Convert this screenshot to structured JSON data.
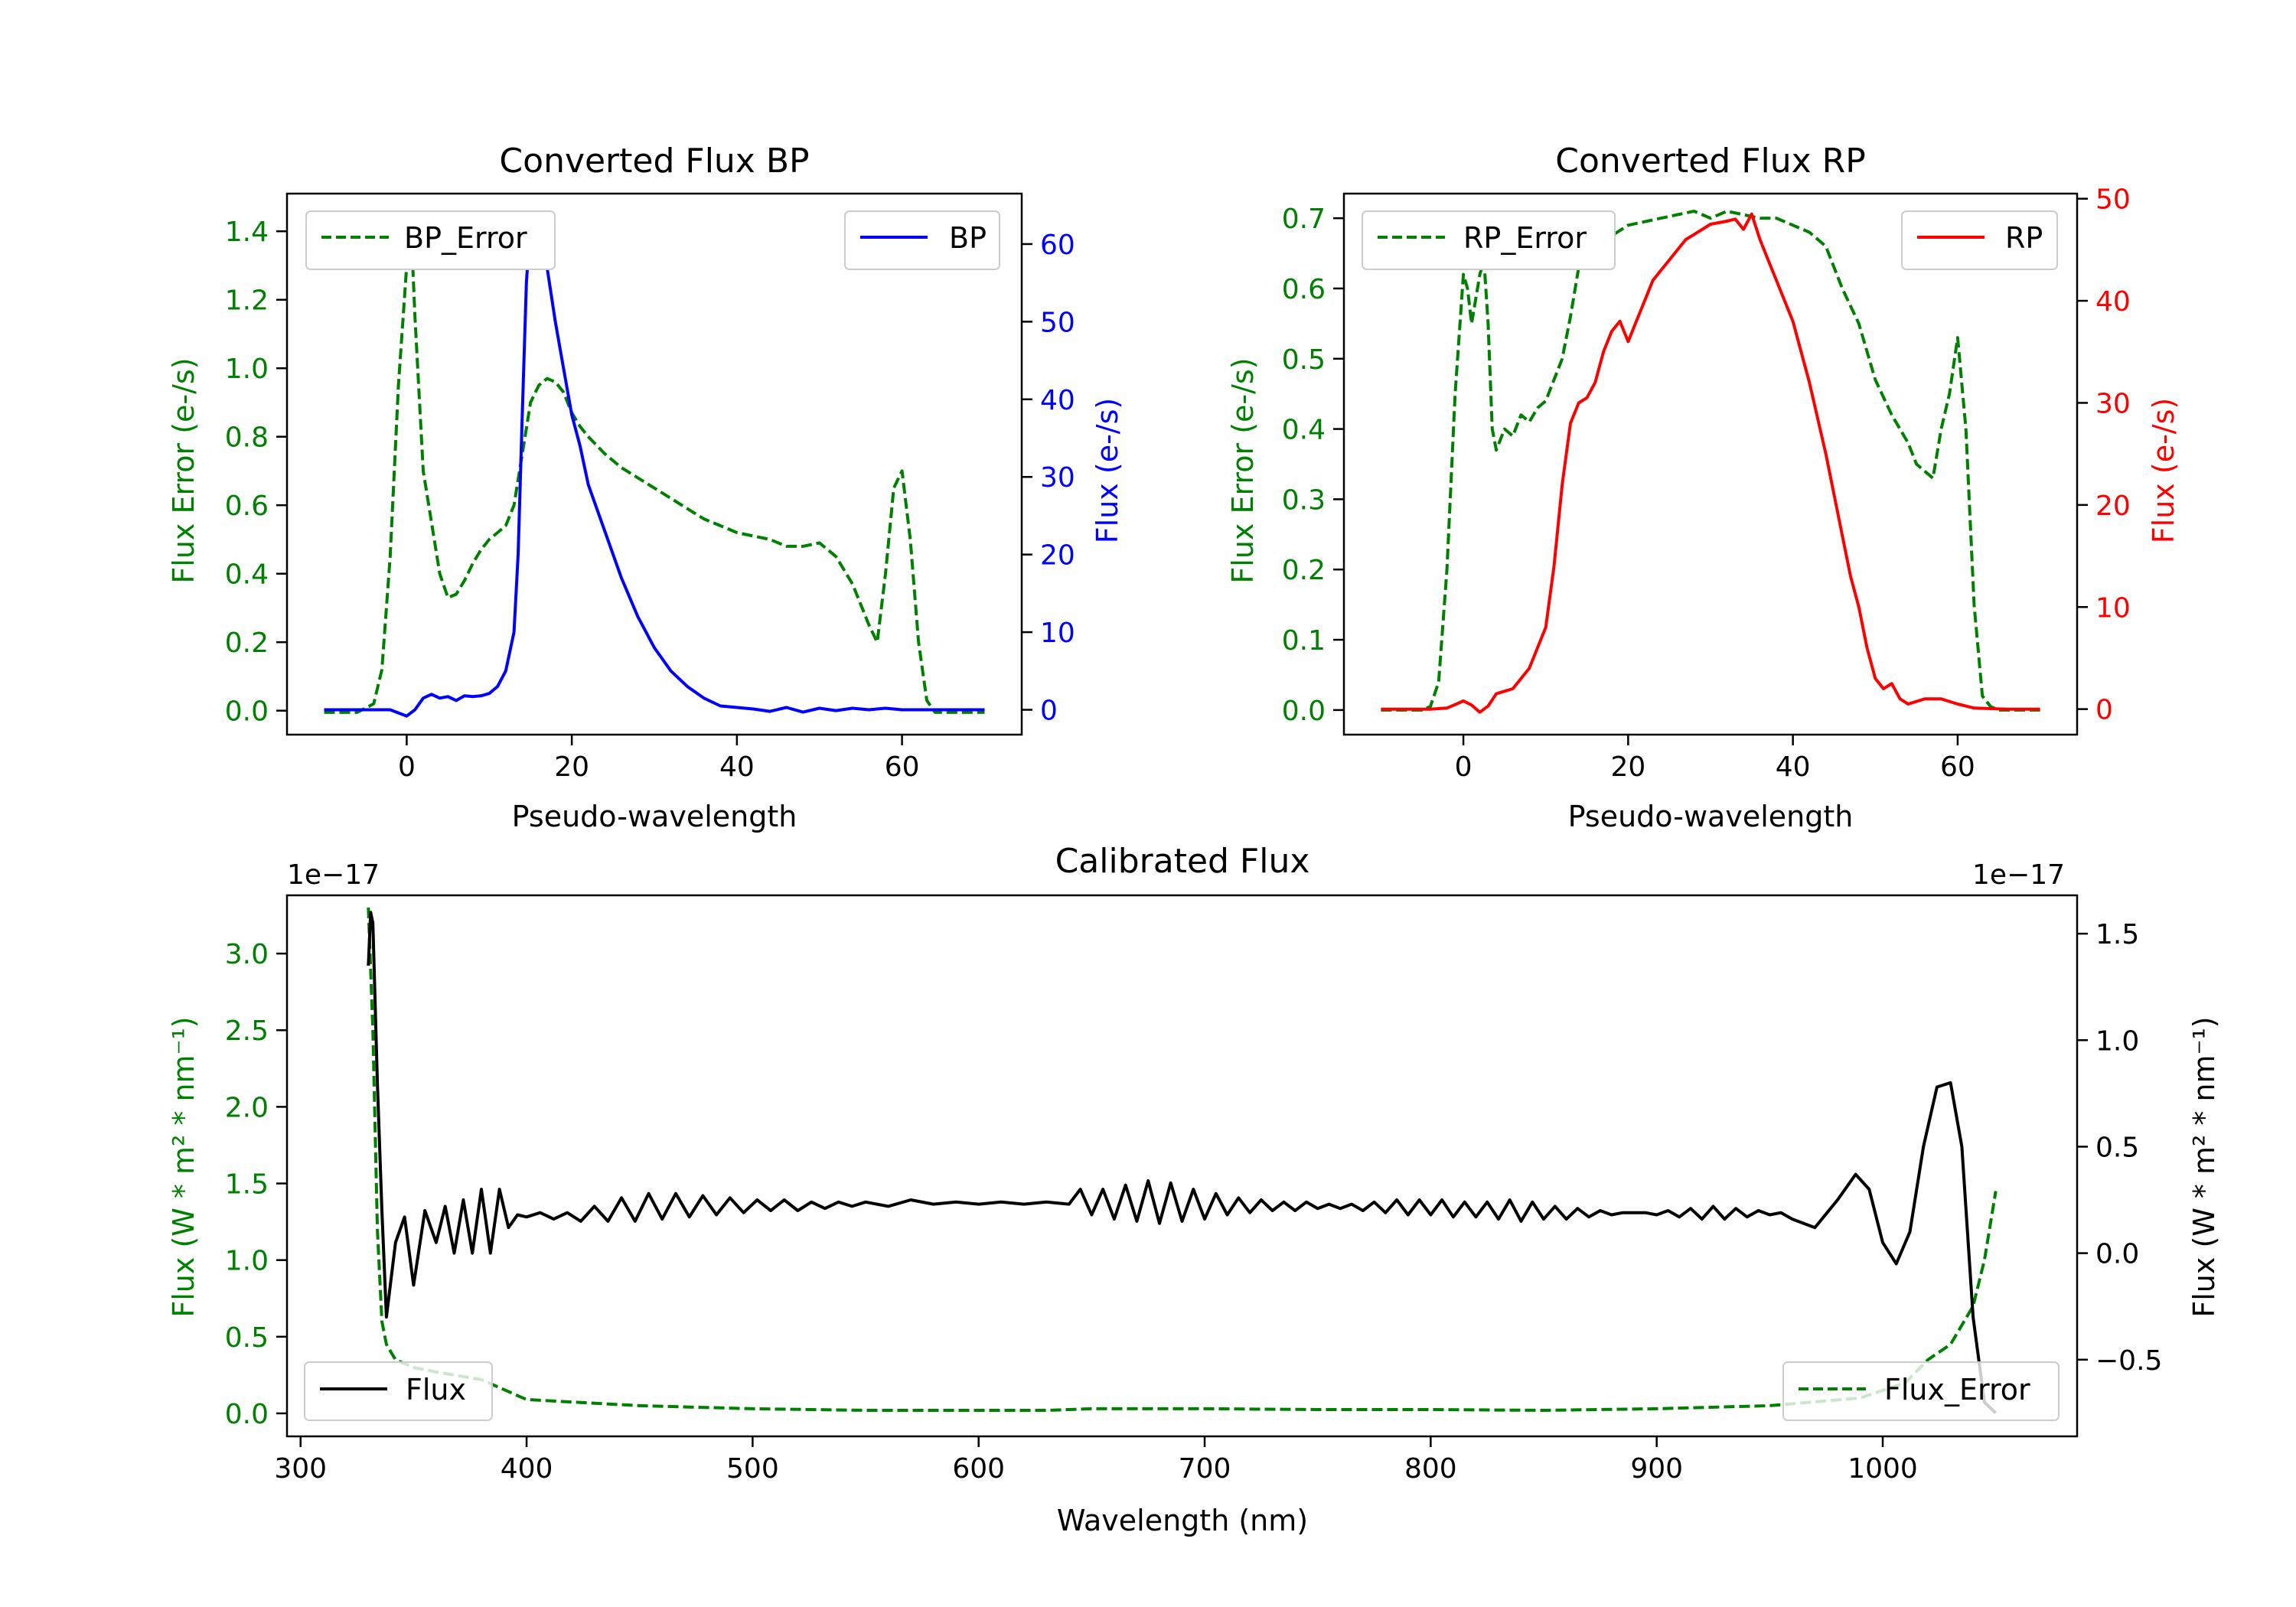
{
  "figure": {
    "background": "#ffffff"
  },
  "chart_data": [
    {
      "id": "bp",
      "type": "line",
      "title": "Converted Flux BP",
      "xlabel": "Pseudo-wavelength",
      "ylabel_left": "Flux Error (e-/s)",
      "ylabel_right": "Flux (e-/s)",
      "left_color": "#008000",
      "right_color": "#0000ff",
      "xlim": [
        -14.5,
        74.5
      ],
      "ylim_left": [
        -0.07,
        1.51
      ],
      "ylim_right": [
        -3.2,
        66.5
      ],
      "xticks": [
        0,
        20,
        40,
        60
      ],
      "xtick_labels": [
        "0",
        "20",
        "40",
        "60"
      ],
      "yticks_left": [
        0.0,
        0.2,
        0.4,
        0.6,
        0.8,
        1.0,
        1.2,
        1.4
      ],
      "ytick_labels_left": [
        "0.0",
        "0.2",
        "0.4",
        "0.6",
        "0.8",
        "1.0",
        "1.2",
        "1.4"
      ],
      "yticks_right": [
        0,
        10,
        20,
        30,
        40,
        50,
        60
      ],
      "ytick_labels_right": [
        "0",
        "10",
        "20",
        "30",
        "40",
        "50",
        "60"
      ],
      "legend_left": {
        "label": "BP_Error",
        "position": "upper-left"
      },
      "legend_right": {
        "label": "BP",
        "position": "upper-right"
      },
      "series": [
        {
          "name": "BP_Error",
          "axis": "left",
          "color": "#008000",
          "style": "dashed",
          "x": [
            -10,
            -6,
            -4,
            -3,
            -2,
            -1,
            0,
            0.5,
            1,
            2,
            3,
            4,
            5,
            6,
            7,
            8,
            9,
            10,
            11,
            12,
            13,
            14,
            15,
            16,
            17,
            18,
            19,
            20,
            21,
            22,
            24,
            26,
            28,
            30,
            32,
            34,
            36,
            38,
            40,
            42,
            44,
            46,
            48,
            50,
            52,
            54,
            55,
            56,
            57,
            58,
            59,
            60,
            61,
            62,
            63,
            64,
            65,
            66,
            70
          ],
          "y": [
            -0.005,
            -0.005,
            0.02,
            0.12,
            0.45,
            0.95,
            1.3,
            1.43,
            1.15,
            0.7,
            0.55,
            0.4,
            0.33,
            0.34,
            0.38,
            0.43,
            0.47,
            0.5,
            0.52,
            0.54,
            0.6,
            0.75,
            0.9,
            0.95,
            0.97,
            0.96,
            0.93,
            0.87,
            0.83,
            0.8,
            0.75,
            0.71,
            0.68,
            0.65,
            0.62,
            0.59,
            0.56,
            0.54,
            0.52,
            0.51,
            0.5,
            0.48,
            0.48,
            0.49,
            0.45,
            0.37,
            0.31,
            0.25,
            0.2,
            0.4,
            0.65,
            0.7,
            0.5,
            0.2,
            0.03,
            -0.005,
            -0.005,
            -0.005,
            -0.005
          ]
        },
        {
          "name": "BP",
          "axis": "right",
          "color": "#0000ff",
          "style": "solid",
          "x": [
            -10,
            -4,
            -2,
            0,
            1,
            2,
            3,
            4,
            5,
            6,
            7,
            8,
            9,
            10,
            11,
            12,
            13,
            13.5,
            14,
            14.5,
            15,
            15.5,
            16,
            17,
            18,
            19,
            20,
            21,
            22,
            23,
            24,
            26,
            28,
            30,
            32,
            34,
            36,
            38,
            40,
            42,
            44,
            46,
            48,
            50,
            52,
            54,
            56,
            58,
            60,
            62,
            64,
            66,
            70
          ],
          "y": [
            0,
            0,
            0,
            -0.8,
            0,
            1.5,
            2,
            1.5,
            1.7,
            1.2,
            1.8,
            1.7,
            1.8,
            2.1,
            3.0,
            5.0,
            10,
            20,
            38,
            55,
            63,
            63.5,
            61,
            57,
            50,
            44,
            38,
            34,
            29,
            26,
            23,
            17,
            12,
            8,
            5,
            3,
            1.5,
            0.5,
            0.3,
            0.1,
            -0.2,
            0.3,
            -0.3,
            0.2,
            -0.1,
            0.2,
            0,
            0.2,
            0,
            0,
            0,
            0,
            0
          ]
        }
      ]
    },
    {
      "id": "rp",
      "type": "line",
      "title": "Converted Flux RP",
      "xlabel": "Pseudo-wavelength",
      "ylabel_left": "Flux Error (e-/s)",
      "ylabel_right": "Flux (e-/s)",
      "left_color": "#008000",
      "right_color": "#ff0000",
      "xlim": [
        -14.5,
        74.5
      ],
      "ylim_left": [
        -0.035,
        0.735
      ],
      "ylim_right": [
        -2.5,
        50.5
      ],
      "xticks": [
        0,
        20,
        40,
        60
      ],
      "xtick_labels": [
        "0",
        "20",
        "40",
        "60"
      ],
      "yticks_left": [
        0.0,
        0.1,
        0.2,
        0.3,
        0.4,
        0.5,
        0.6,
        0.7
      ],
      "ytick_labels_left": [
        "0.0",
        "0.1",
        "0.2",
        "0.3",
        "0.4",
        "0.5",
        "0.6",
        "0.7"
      ],
      "yticks_right": [
        0,
        10,
        20,
        30,
        40,
        50
      ],
      "ytick_labels_right": [
        "0",
        "10",
        "20",
        "30",
        "40",
        "50"
      ],
      "legend_left": {
        "label": "RP_Error",
        "position": "upper-left"
      },
      "legend_right": {
        "label": "RP",
        "position": "upper-right"
      },
      "series": [
        {
          "name": "RP_Error",
          "axis": "left",
          "color": "#008000",
          "style": "dashed",
          "x": [
            -10,
            -5,
            -4,
            -3,
            -2,
            -1,
            0,
            0.5,
            1,
            2,
            2.5,
            3,
            3.5,
            4,
            5,
            6,
            7,
            8,
            9,
            10,
            11,
            12,
            13,
            14,
            15,
            16,
            18,
            20,
            22,
            24,
            26,
            28,
            30,
            32,
            34,
            36,
            38,
            40,
            42,
            44,
            46,
            48,
            50,
            52,
            54,
            55,
            56,
            57,
            58,
            59,
            60,
            61,
            62,
            63,
            64,
            65,
            66,
            70
          ],
          "y": [
            0,
            0,
            0.005,
            0.04,
            0.2,
            0.45,
            0.62,
            0.6,
            0.55,
            0.62,
            0.64,
            0.55,
            0.4,
            0.37,
            0.4,
            0.39,
            0.42,
            0.41,
            0.43,
            0.44,
            0.47,
            0.5,
            0.56,
            0.63,
            0.64,
            0.66,
            0.675,
            0.69,
            0.695,
            0.7,
            0.705,
            0.71,
            0.7,
            0.71,
            0.705,
            0.7,
            0.7,
            0.69,
            0.68,
            0.66,
            0.6,
            0.55,
            0.47,
            0.42,
            0.38,
            0.35,
            0.34,
            0.33,
            0.4,
            0.45,
            0.53,
            0.4,
            0.15,
            0.02,
            0.005,
            0,
            0,
            0
          ]
        },
        {
          "name": "RP",
          "axis": "right",
          "color": "#ff0000",
          "style": "solid",
          "x": [
            -10,
            -4,
            -2,
            0,
            1,
            2,
            3,
            4,
            6,
            8,
            10,
            11,
            12,
            13,
            14,
            15,
            16,
            17,
            18,
            19,
            20,
            21,
            22,
            23,
            24,
            25,
            26,
            27,
            28,
            30,
            32,
            33,
            34,
            35,
            36,
            37,
            38,
            40,
            42,
            44,
            46,
            47,
            48,
            49,
            50,
            51,
            52,
            53,
            54,
            56,
            58,
            60,
            62,
            66,
            70
          ],
          "y": [
            0,
            0,
            0.1,
            0.8,
            0.4,
            -0.3,
            0.3,
            1.5,
            2.0,
            4.0,
            8.0,
            14,
            22,
            28,
            30,
            30.5,
            32,
            35,
            37,
            38,
            36,
            38,
            40,
            42,
            43,
            44,
            45,
            46,
            46.5,
            47.5,
            47.8,
            48,
            47,
            48.5,
            46,
            44,
            42,
            38,
            32,
            25,
            17,
            13,
            10,
            6,
            3,
            2,
            2.5,
            1.0,
            0.5,
            1.0,
            1.0,
            0.5,
            0.1,
            0,
            0
          ]
        }
      ]
    },
    {
      "id": "cal",
      "type": "line",
      "title": "Calibrated Flux",
      "xlabel": "Wavelength (nm)",
      "ylabel_left": "Flux (W * m² * nm⁻¹)",
      "ylabel_right": "Flux (W * m² * nm⁻¹)",
      "left_color": "#008000",
      "right_color": "#000000",
      "left_offset": "1e−17",
      "right_offset": "1e−17",
      "xlim": [
        294,
        1086
      ],
      "ylim_left": [
        -0.15,
        3.38
      ],
      "ylim_right": [
        -0.86,
        1.68
      ],
      "xticks": [
        300,
        400,
        500,
        600,
        700,
        800,
        900,
        1000
      ],
      "xtick_labels": [
        "300",
        "400",
        "500",
        "600",
        "700",
        "800",
        "900",
        "1000"
      ],
      "yticks_left": [
        0.0,
        0.5,
        1.0,
        1.5,
        2.0,
        2.5,
        3.0
      ],
      "ytick_labels_left": [
        "0.0",
        "0.5",
        "1.0",
        "1.5",
        "2.0",
        "2.5",
        "3.0"
      ],
      "yticks_right": [
        -0.5,
        0.0,
        0.5,
        1.0,
        1.5
      ],
      "ytick_labels_right": [
        "−0.5",
        "0.0",
        "0.5",
        "1.0",
        "1.5"
      ],
      "legend_left": {
        "label": "Flux",
        "position": "lower-left"
      },
      "legend_right": {
        "label": "Flux_Error",
        "position": "lower-right"
      },
      "series": [
        {
          "name": "Flux_Error",
          "axis": "left",
          "color": "#008000",
          "style": "dashed",
          "x": [
            330,
            332,
            334,
            336,
            338,
            342,
            350,
            360,
            380,
            400,
            450,
            500,
            550,
            600,
            630,
            650,
            700,
            750,
            800,
            850,
            900,
            950,
            990,
            1010,
            1020,
            1030,
            1040,
            1045,
            1050
          ],
          "y": [
            3.3,
            2.5,
            1.2,
            0.6,
            0.45,
            0.35,
            0.3,
            0.27,
            0.22,
            0.09,
            0.05,
            0.03,
            0.02,
            0.02,
            0.02,
            0.03,
            0.03,
            0.025,
            0.025,
            0.02,
            0.03,
            0.05,
            0.1,
            0.2,
            0.35,
            0.45,
            0.7,
            1.0,
            1.45
          ]
        },
        {
          "name": "Flux",
          "axis": "right",
          "color": "#000000",
          "style": "solid",
          "x": [
            330,
            331,
            332,
            334,
            336,
            338,
            342,
            346,
            350,
            355,
            360,
            364,
            368,
            372,
            376,
            380,
            384,
            388,
            392,
            396,
            400,
            406,
            412,
            418,
            424,
            430,
            436,
            442,
            448,
            454,
            460,
            466,
            472,
            478,
            484,
            490,
            496,
            502,
            508,
            514,
            520,
            526,
            532,
            538,
            544,
            550,
            560,
            570,
            580,
            590,
            600,
            610,
            620,
            630,
            640,
            645,
            650,
            655,
            660,
            665,
            670,
            675,
            680,
            685,
            690,
            695,
            700,
            705,
            710,
            715,
            720,
            725,
            730,
            735,
            740,
            745,
            750,
            755,
            760,
            765,
            770,
            775,
            780,
            785,
            790,
            795,
            800,
            805,
            810,
            815,
            820,
            825,
            830,
            835,
            840,
            845,
            850,
            855,
            860,
            865,
            870,
            875,
            880,
            885,
            890,
            895,
            900,
            905,
            910,
            915,
            920,
            925,
            930,
            935,
            940,
            945,
            950,
            955,
            960,
            970,
            980,
            988,
            994,
            1000,
            1006,
            1012,
            1018,
            1024,
            1030,
            1035,
            1040,
            1045,
            1050
          ],
          "y": [
            1.35,
            1.6,
            1.55,
            0.8,
            0.2,
            -0.3,
            0.05,
            0.17,
            -0.15,
            0.2,
            0.05,
            0.22,
            0.0,
            0.25,
            0.0,
            0.3,
            0.0,
            0.3,
            0.12,
            0.18,
            0.17,
            0.19,
            0.16,
            0.19,
            0.15,
            0.22,
            0.15,
            0.26,
            0.15,
            0.28,
            0.16,
            0.28,
            0.17,
            0.27,
            0.18,
            0.26,
            0.19,
            0.25,
            0.2,
            0.25,
            0.2,
            0.24,
            0.21,
            0.24,
            0.22,
            0.24,
            0.22,
            0.25,
            0.23,
            0.24,
            0.23,
            0.24,
            0.23,
            0.24,
            0.23,
            0.3,
            0.18,
            0.3,
            0.16,
            0.32,
            0.15,
            0.34,
            0.14,
            0.33,
            0.15,
            0.3,
            0.16,
            0.28,
            0.18,
            0.26,
            0.19,
            0.25,
            0.2,
            0.24,
            0.2,
            0.24,
            0.21,
            0.23,
            0.21,
            0.23,
            0.2,
            0.24,
            0.19,
            0.25,
            0.18,
            0.25,
            0.18,
            0.25,
            0.17,
            0.24,
            0.17,
            0.24,
            0.16,
            0.25,
            0.15,
            0.24,
            0.16,
            0.22,
            0.16,
            0.21,
            0.17,
            0.2,
            0.18,
            0.19,
            0.19,
            0.19,
            0.18,
            0.2,
            0.17,
            0.21,
            0.16,
            0.22,
            0.16,
            0.21,
            0.17,
            0.2,
            0.18,
            0.19,
            0.16,
            0.12,
            0.25,
            0.37,
            0.3,
            0.05,
            -0.05,
            0.1,
            0.5,
            0.78,
            0.8,
            0.5,
            -0.3,
            -0.7,
            -0.75
          ]
        }
      ]
    }
  ]
}
